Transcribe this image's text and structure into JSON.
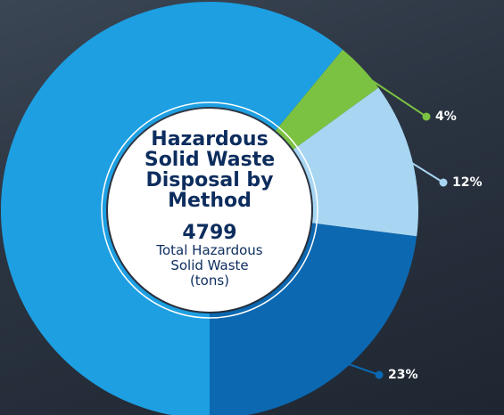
{
  "chart_data": {
    "type": "donut",
    "title": "Hazardous Solid Waste Disposal by Method",
    "center_value": 4799,
    "center_label": "Total Hazardous Solid Waste (tons)",
    "categories": [
      null,
      null,
      null,
      null
    ],
    "values": [
      61,
      4,
      12,
      23
    ],
    "value_labels": [
      null,
      "4%",
      "12%",
      "23%"
    ],
    "colors": [
      "#1d9fe2",
      "#7cc242",
      "#a8d6f2",
      "#0b68b1"
    ]
  }
}
